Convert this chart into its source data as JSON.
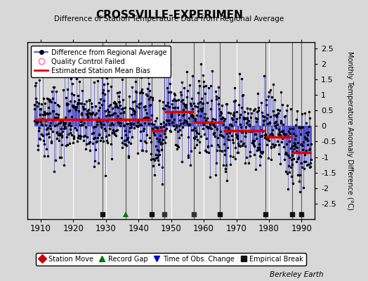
{
  "title": "CROSSVILLE-EXPERIMEN",
  "subtitle": "Difference of Station Temperature Data from Regional Average",
  "ylabel_right": "Monthly Temperature Anomaly Difference (°C)",
  "xlabel_ticks": [
    1910,
    1920,
    1930,
    1940,
    1950,
    1960,
    1970,
    1980,
    1990
  ],
  "yticks_right": [
    -2.5,
    -2,
    -1.5,
    -1,
    -0.5,
    0,
    0.5,
    1,
    1.5,
    2,
    2.5
  ],
  "xlim": [
    1906,
    1994
  ],
  "ylim": [
    -3.0,
    2.7
  ],
  "bg_color": "#d8d8d8",
  "plot_bg_color": "#d8d8d8",
  "grid_color": "white",
  "line_color": "#3333cc",
  "dot_color": "#000000",
  "bias_color": "#dd0000",
  "station_move_color": "#cc0000",
  "record_gap_color": "#007700",
  "time_obs_color": "#0000cc",
  "empirical_break_color": "#222222",
  "segment_biases": [
    {
      "start": 1908,
      "end": 1930,
      "bias": 0.22
    },
    {
      "start": 1930,
      "end": 1944,
      "bias": 0.22
    },
    {
      "start": 1944,
      "end": 1948,
      "bias": -0.15
    },
    {
      "start": 1948,
      "end": 1957,
      "bias": 0.45
    },
    {
      "start": 1957,
      "end": 1966,
      "bias": 0.12
    },
    {
      "start": 1966,
      "end": 1979,
      "bias": -0.15
    },
    {
      "start": 1979,
      "end": 1987,
      "bias": -0.35
    },
    {
      "start": 1987,
      "end": 1993,
      "bias": -0.85
    }
  ],
  "record_gaps": [
    1936
  ],
  "time_obs_changes": [
    1948,
    1957
  ],
  "empirical_breaks": [
    1929,
    1944,
    1965,
    1979,
    1987,
    1990
  ],
  "break_marker_positions": [
    1929,
    1936,
    1944,
    1948,
    1957,
    1965,
    1979,
    1987,
    1990
  ],
  "watermark": "Berkeley Earth",
  "seed": 42
}
